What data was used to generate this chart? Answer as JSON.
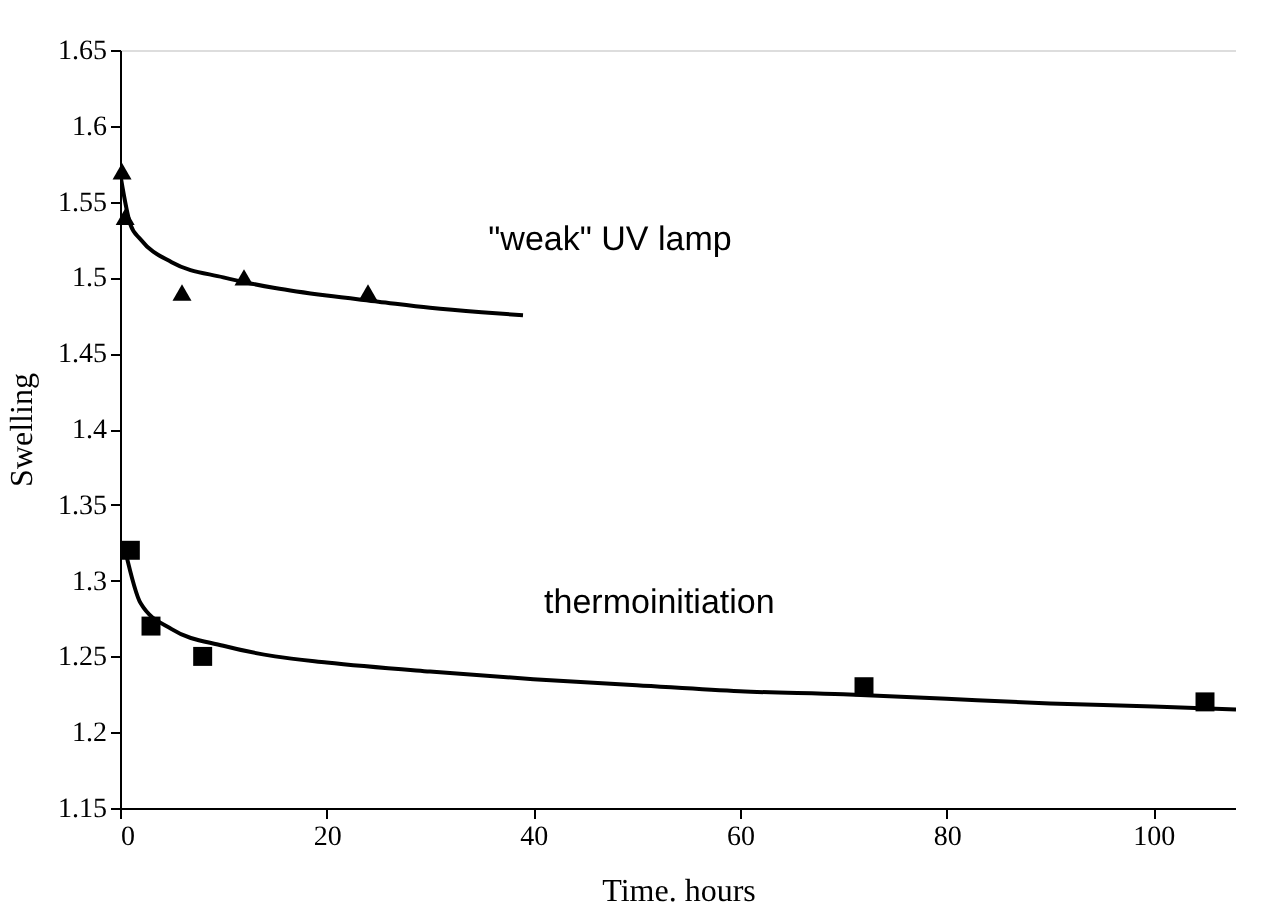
{
  "chart_data": {
    "type": "scatter",
    "xlabel": "Time. hours",
    "ylabel": "Swelling",
    "xlim": [
      0,
      108
    ],
    "xticks": [
      0,
      20,
      40,
      60,
      80,
      100
    ],
    "ylim": [
      1.15,
      1.65
    ],
    "yticks": [
      1.15,
      1.2,
      1.25,
      1.3,
      1.35,
      1.4,
      1.45,
      1.5,
      1.55,
      1.6,
      1.65
    ],
    "grid": false,
    "series": [
      {
        "marker": "triangle",
        "color": "#000000",
        "x": [
          0.2,
          0.5,
          6,
          12,
          24
        ],
        "values": [
          1.57,
          1.54,
          1.49,
          1.5,
          1.49
        ]
      },
      {
        "type": "line",
        "marker": "none",
        "line_style": "solid",
        "color": "#000000",
        "x": [
          0.1,
          1,
          2,
          5,
          10,
          15,
          20,
          25,
          30,
          35,
          39
        ],
        "values": [
          1.565,
          1.535,
          1.525,
          1.51,
          1.5,
          1.493,
          1.488,
          1.484,
          1.48,
          1.477,
          1.475
        ]
      },
      {
        "marker": "square",
        "color": "#000000",
        "x": [
          1,
          3,
          8,
          72,
          105
        ],
        "values": [
          1.32,
          1.27,
          1.25,
          1.23,
          1.22
        ]
      },
      {
        "type": "line",
        "marker": "none",
        "line_style": "solid",
        "color": "#000000",
        "x": [
          0.5,
          2,
          5,
          10,
          15,
          20,
          30,
          40,
          50,
          60,
          70,
          80,
          90,
          100,
          108
        ],
        "values": [
          1.32,
          1.285,
          1.268,
          1.257,
          1.25,
          1.246,
          1.24,
          1.235,
          1.231,
          1.227,
          1.225,
          1.222,
          1.219,
          1.217,
          1.215
        ]
      }
    ],
    "annotations": [
      "\"weak\" UV lamp",
      "thermoinitiation"
    ]
  }
}
